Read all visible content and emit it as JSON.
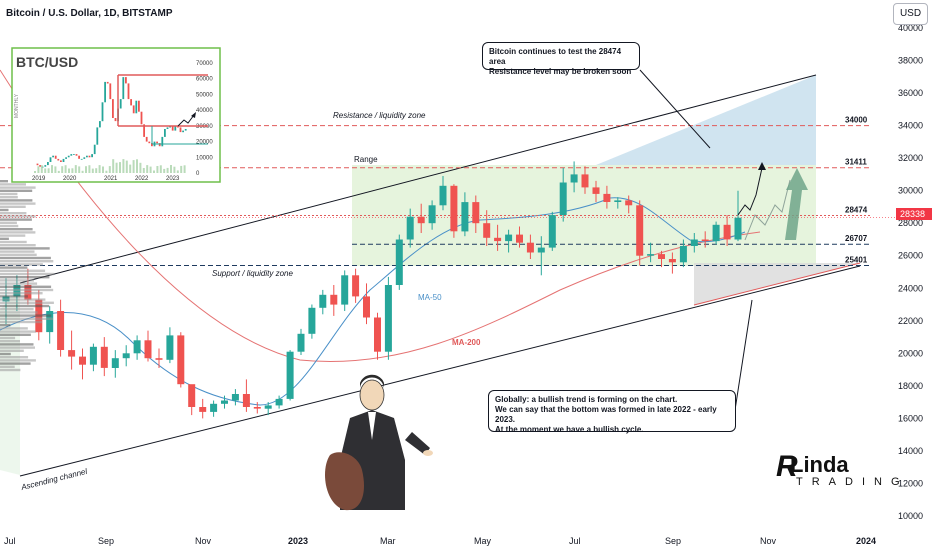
{
  "header": {
    "title": "Bitcoin / U.S. Dollar, 1D, BITSTAMP",
    "currency_button": "USD"
  },
  "chart_data": {
    "type": "candlestick",
    "title": "Bitcoin / U.S. Dollar, 1D, BITSTAMP",
    "y_axis": {
      "ticks": [
        "40000",
        "38000",
        "36000",
        "34000",
        "32000",
        "30000",
        "28000",
        "26000",
        "24000",
        "22000",
        "20000",
        "18000",
        "16000",
        "14000",
        "12000",
        "10000"
      ],
      "ylim": [
        10000,
        40000
      ]
    },
    "x_axis": {
      "ticks": [
        "Jul",
        "Sep",
        "Nov",
        "2023",
        "Mar",
        "May",
        "Jul",
        "Sep",
        "Nov",
        "2024"
      ]
    },
    "levels": [
      {
        "name": "34000",
        "value": 34000,
        "color": "#e05a5a",
        "style": "dashed"
      },
      {
        "name": "31411",
        "value": 31411,
        "color": "#e05a5a",
        "style": "dashed"
      },
      {
        "name": "28474",
        "value": 28474,
        "color": "#e05a5a",
        "style": "dashed"
      },
      {
        "name": "26707",
        "value": 26707,
        "color": "#1e3a5f",
        "style": "dashed"
      },
      {
        "name": "25401",
        "value": 25401,
        "color": "#1e3a5f",
        "style": "dashed"
      }
    ],
    "current_price": {
      "label": "28338",
      "value": 28338,
      "color": "#f23645"
    },
    "candles_ohlc": [
      [
        23200,
        24600,
        21800,
        23500
      ],
      [
        23500,
        24800,
        22600,
        24200
      ],
      [
        24200,
        25200,
        23000,
        23300
      ],
      [
        23300,
        23900,
        20800,
        21300
      ],
      [
        21300,
        22900,
        20600,
        22600
      ],
      [
        22600,
        23300,
        19800,
        20200
      ],
      [
        20200,
        21400,
        19000,
        19800
      ],
      [
        19800,
        20300,
        18400,
        19300
      ],
      [
        19300,
        20600,
        18900,
        20400
      ],
      [
        20400,
        21000,
        18600,
        19100
      ],
      [
        19100,
        20200,
        18500,
        19700
      ],
      [
        19700,
        20500,
        19200,
        20000
      ],
      [
        20000,
        21100,
        19600,
        20800
      ],
      [
        20800,
        21400,
        19500,
        19700
      ],
      [
        19700,
        20300,
        19100,
        19600
      ],
      [
        19600,
        21600,
        19400,
        21100
      ],
      [
        21100,
        21300,
        17900,
        18100
      ],
      [
        18100,
        17900,
        16200,
        16700
      ],
      [
        16700,
        17200,
        16000,
        16400
      ],
      [
        16400,
        17100,
        16100,
        16900
      ],
      [
        16900,
        17400,
        16600,
        17100
      ],
      [
        17100,
        17800,
        16800,
        17500
      ],
      [
        17500,
        18400,
        16400,
        16700
      ],
      [
        16700,
        17000,
        16300,
        16600
      ],
      [
        16600,
        17000,
        16200,
        16800
      ],
      [
        16800,
        17400,
        16600,
        17200
      ],
      [
        17200,
        20200,
        17100,
        20100
      ],
      [
        20100,
        21500,
        19900,
        21200
      ],
      [
        21200,
        23000,
        20900,
        22800
      ],
      [
        22800,
        23900,
        22400,
        23600
      ],
      [
        23600,
        24200,
        22300,
        23000
      ],
      [
        23000,
        25100,
        22600,
        24800
      ],
      [
        24800,
        25200,
        23100,
        23500
      ],
      [
        23500,
        24300,
        21800,
        22200
      ],
      [
        22200,
        22500,
        19600,
        20100
      ],
      [
        20100,
        24700,
        19600,
        24200
      ],
      [
        24200,
        27300,
        23900,
        27000
      ],
      [
        27000,
        28900,
        26500,
        28400
      ],
      [
        28400,
        29200,
        27400,
        28000
      ],
      [
        28000,
        29400,
        27600,
        29100
      ],
      [
        29100,
        30900,
        28800,
        30300
      ],
      [
        30300,
        30400,
        27100,
        27500
      ],
      [
        27500,
        29900,
        27200,
        29300
      ],
      [
        29300,
        29700,
        27400,
        28000
      ],
      [
        28000,
        28800,
        26600,
        27100
      ],
      [
        27100,
        27900,
        26300,
        26900
      ],
      [
        26900,
        27600,
        26200,
        27300
      ],
      [
        27300,
        27800,
        26500,
        26800
      ],
      [
        26800,
        27300,
        25800,
        26200
      ],
      [
        26200,
        27200,
        24800,
        26500
      ],
      [
        26500,
        28700,
        26300,
        28500
      ],
      [
        28500,
        31400,
        28100,
        30500
      ],
      [
        30500,
        31800,
        29900,
        31000
      ],
      [
        31000,
        31500,
        29800,
        30200
      ],
      [
        30200,
        30600,
        29300,
        29800
      ],
      [
        29800,
        30300,
        28900,
        29300
      ],
      [
        29300,
        29600,
        28900,
        29400
      ],
      [
        29400,
        29700,
        28600,
        29100
      ],
      [
        29100,
        29400,
        25400,
        26000
      ],
      [
        26000,
        26800,
        25600,
        26100
      ],
      [
        26100,
        26300,
        25300,
        25800
      ],
      [
        25800,
        26200,
        24900,
        25600
      ],
      [
        25600,
        27000,
        25300,
        26600
      ],
      [
        26600,
        27400,
        26200,
        27000
      ],
      [
        27000,
        27500,
        26500,
        26900
      ],
      [
        26900,
        28100,
        26700,
        27900
      ],
      [
        27900,
        28500,
        26600,
        27000
      ],
      [
        27000,
        30000,
        26900,
        28338
      ]
    ],
    "ma50_label": "MA-50",
    "ma200_label": "MA-200",
    "annotations": {
      "range": "Range",
      "resistance": "Resistance / liquidity zone",
      "support": "Support / liquidity zone",
      "channel": "Ascending channel"
    },
    "inset": {
      "title": "BTC/USD",
      "subtitle": "MONTHLY",
      "y_ticks": [
        "70000",
        "60000",
        "50000",
        "40000",
        "30000",
        "20000",
        "10000",
        "0"
      ],
      "x_ticks": [
        "2019",
        "2020",
        "2021",
        "2022",
        "2023"
      ]
    }
  },
  "callouts": {
    "top": [
      "Bitcoin continues to test the 28474 area",
      "Resistance level may be broken soon"
    ],
    "bottom": [
      "Globally: a bullish trend is forming on the chart.",
      "We can say that the bottom was formed in late 2022 - early 2023.",
      "At the moment we have a bullish cycle."
    ]
  },
  "logo": {
    "letter": "R",
    "main": "Linda",
    "sub": "TRADING"
  },
  "colors": {
    "up": "#26a69a",
    "down": "#ef5350",
    "channel": "#131722",
    "range_fill": "#dff0d0",
    "ma50": "#4a90c8",
    "ma200": "#e57373"
  }
}
